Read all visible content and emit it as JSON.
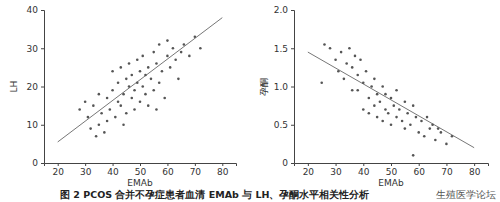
{
  "chart_data": [
    {
      "type": "scatter",
      "x_label": "EMAb",
      "y_label": "LH",
      "color": "#555555",
      "marker": "circle",
      "xlim": [
        15,
        85
      ],
      "xticks": [
        20,
        30,
        40,
        50,
        60,
        70,
        80
      ],
      "ylim": [
        0,
        40
      ],
      "yticks": [
        0,
        10,
        20,
        30,
        40
      ],
      "x": [
        30,
        31,
        32,
        33,
        34,
        35,
        36,
        37,
        38,
        38,
        39,
        40,
        40,
        41,
        42,
        42,
        43,
        43,
        44,
        45,
        45,
        46,
        46,
        47,
        47,
        48,
        48,
        49,
        49,
        50,
        50,
        51,
        51,
        52,
        52,
        53,
        53,
        54,
        55,
        55,
        56,
        56,
        57,
        57,
        58,
        59,
        60,
        60,
        61,
        62,
        63,
        64,
        65,
        66,
        68,
        70,
        72,
        28,
        35,
        44
      ],
      "y": [
        16,
        12,
        9,
        15,
        7,
        10,
        13,
        8,
        17,
        11,
        14,
        19,
        24,
        12,
        21,
        16,
        15,
        25,
        18,
        22,
        13,
        20,
        26,
        17,
        23,
        14,
        19,
        27,
        21,
        16,
        24,
        20,
        28,
        18,
        23,
        25,
        15,
        22,
        29,
        19,
        14,
        26,
        21,
        31,
        24,
        17,
        28,
        32,
        25,
        30,
        27,
        22,
        29,
        31,
        28,
        33,
        30,
        14,
        18,
        10
      ],
      "fit": {
        "x": [
          20,
          80
        ],
        "y": [
          5.5,
          38
        ]
      }
    },
    {
      "type": "scatter",
      "x_label": "EMAb",
      "y_label": "孕酮",
      "color": "#555555",
      "marker": "circle",
      "xlim": [
        15,
        85
      ],
      "xticks": [
        20,
        30,
        40,
        50,
        60,
        70,
        80
      ],
      "ylim": [
        0,
        2
      ],
      "yticks": [
        0,
        0.5,
        {
          "value": 1,
          "label": "1.0"
        },
        1.5,
        {
          "value": 2,
          "label": "2.0"
        }
      ],
      "x": [
        25,
        28,
        30,
        31,
        32,
        33,
        34,
        35,
        36,
        37,
        38,
        38,
        39,
        40,
        40,
        41,
        42,
        42,
        43,
        44,
        44,
        45,
        45,
        46,
        47,
        47,
        48,
        48,
        49,
        50,
        50,
        51,
        52,
        52,
        53,
        54,
        55,
        55,
        56,
        57,
        58,
        58,
        59,
        60,
        61,
        62,
        63,
        64,
        65,
        66,
        67,
        68,
        70,
        72,
        26,
        36
      ],
      "y": [
        1.05,
        1.5,
        1.35,
        1.2,
        1.45,
        1.1,
        1.3,
        1.5,
        1.25,
        1.4,
        1.15,
        0.95,
        1.35,
        1.05,
        0.7,
        1.2,
        0.85,
        0.65,
        1.0,
        0.75,
        1.1,
        0.9,
        0.6,
        0.8,
        1.0,
        0.55,
        0.7,
        0.9,
        0.65,
        0.85,
        0.5,
        0.75,
        0.95,
        0.6,
        0.7,
        0.55,
        0.8,
        0.45,
        0.65,
        0.5,
        0.75,
        0.1,
        0.6,
        0.4,
        0.55,
        0.35,
        0.6,
        0.45,
        0.5,
        0.3,
        0.45,
        0.4,
        0.25,
        0.35,
        1.55,
        0.95
      ],
      "fit": {
        "x": [
          20,
          80
        ],
        "y": [
          1.45,
          0.2
        ]
      }
    }
  ],
  "caption": "图 2  PCOS 合并不孕症患者血清 EMAb 与 LH、孕酮水平相关性分析",
  "watermark": "生殖医学论坛"
}
